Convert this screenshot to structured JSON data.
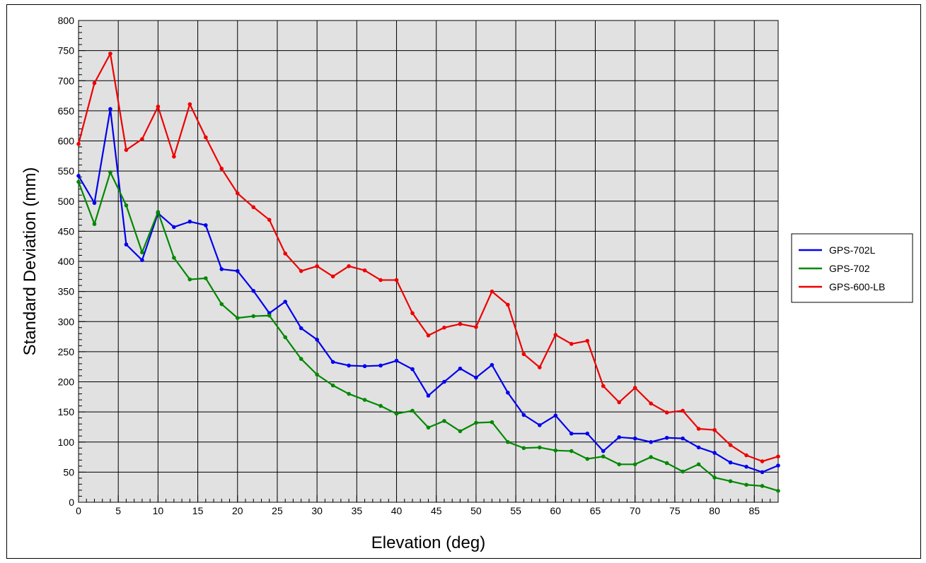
{
  "chart_data": {
    "type": "line",
    "title": "",
    "xlabel": "Elevation (deg)",
    "ylabel": "Standard Deviation (mm)",
    "xlim": [
      0,
      88
    ],
    "ylim": [
      0,
      800
    ],
    "x_ticks": [
      0,
      5,
      10,
      15,
      20,
      25,
      30,
      35,
      40,
      45,
      50,
      55,
      60,
      65,
      70,
      75,
      80,
      85
    ],
    "y_ticks": [
      0,
      50,
      100,
      150,
      200,
      250,
      300,
      350,
      400,
      450,
      500,
      550,
      600,
      650,
      700,
      750,
      800
    ],
    "grid": true,
    "legend_position": "right",
    "x": [
      0,
      2,
      4,
      6,
      8,
      10,
      12,
      14,
      16,
      18,
      20,
      22,
      24,
      26,
      28,
      30,
      32,
      34,
      36,
      38,
      40,
      42,
      44,
      46,
      48,
      50,
      52,
      54,
      56,
      58,
      60,
      62,
      64,
      66,
      68,
      70,
      72,
      74,
      76,
      78,
      80,
      82,
      84,
      86,
      88
    ],
    "series": [
      {
        "name": "GPS-702L",
        "color": "#0000ee",
        "values": [
          542,
          497,
          653,
          428,
          402,
          480,
          457,
          466,
          460,
          387,
          384,
          351,
          314,
          333,
          289,
          270,
          233,
          227,
          226,
          227,
          235,
          221,
          177,
          200,
          222,
          207,
          228,
          182,
          145,
          128,
          144,
          114,
          114,
          85,
          108,
          106,
          100,
          107,
          106,
          91,
          82,
          66,
          59,
          50,
          61
        ]
      },
      {
        "name": "GPS-702",
        "color": "#008800",
        "values": [
          532,
          462,
          548,
          493,
          415,
          482,
          406,
          370,
          372,
          329,
          306,
          309,
          310,
          274,
          238,
          212,
          194,
          180,
          170,
          160,
          147,
          152,
          124,
          135,
          118,
          132,
          133,
          100,
          90,
          91,
          86,
          85,
          72,
          76,
          63,
          63,
          75,
          65,
          51,
          63,
          41,
          35,
          29,
          27,
          19
        ]
      },
      {
        "name": "GPS-600-LB",
        "color": "#ee0000",
        "values": [
          595,
          696,
          745,
          585,
          603,
          657,
          574,
          661,
          606,
          554,
          513,
          490,
          469,
          413,
          384,
          392,
          375,
          392,
          385,
          369,
          369,
          314,
          277,
          290,
          296,
          291,
          350,
          328,
          246,
          224,
          278,
          263,
          268,
          193,
          166,
          190,
          164,
          149,
          152,
          122,
          120,
          95,
          78,
          68,
          76
        ]
      }
    ]
  }
}
